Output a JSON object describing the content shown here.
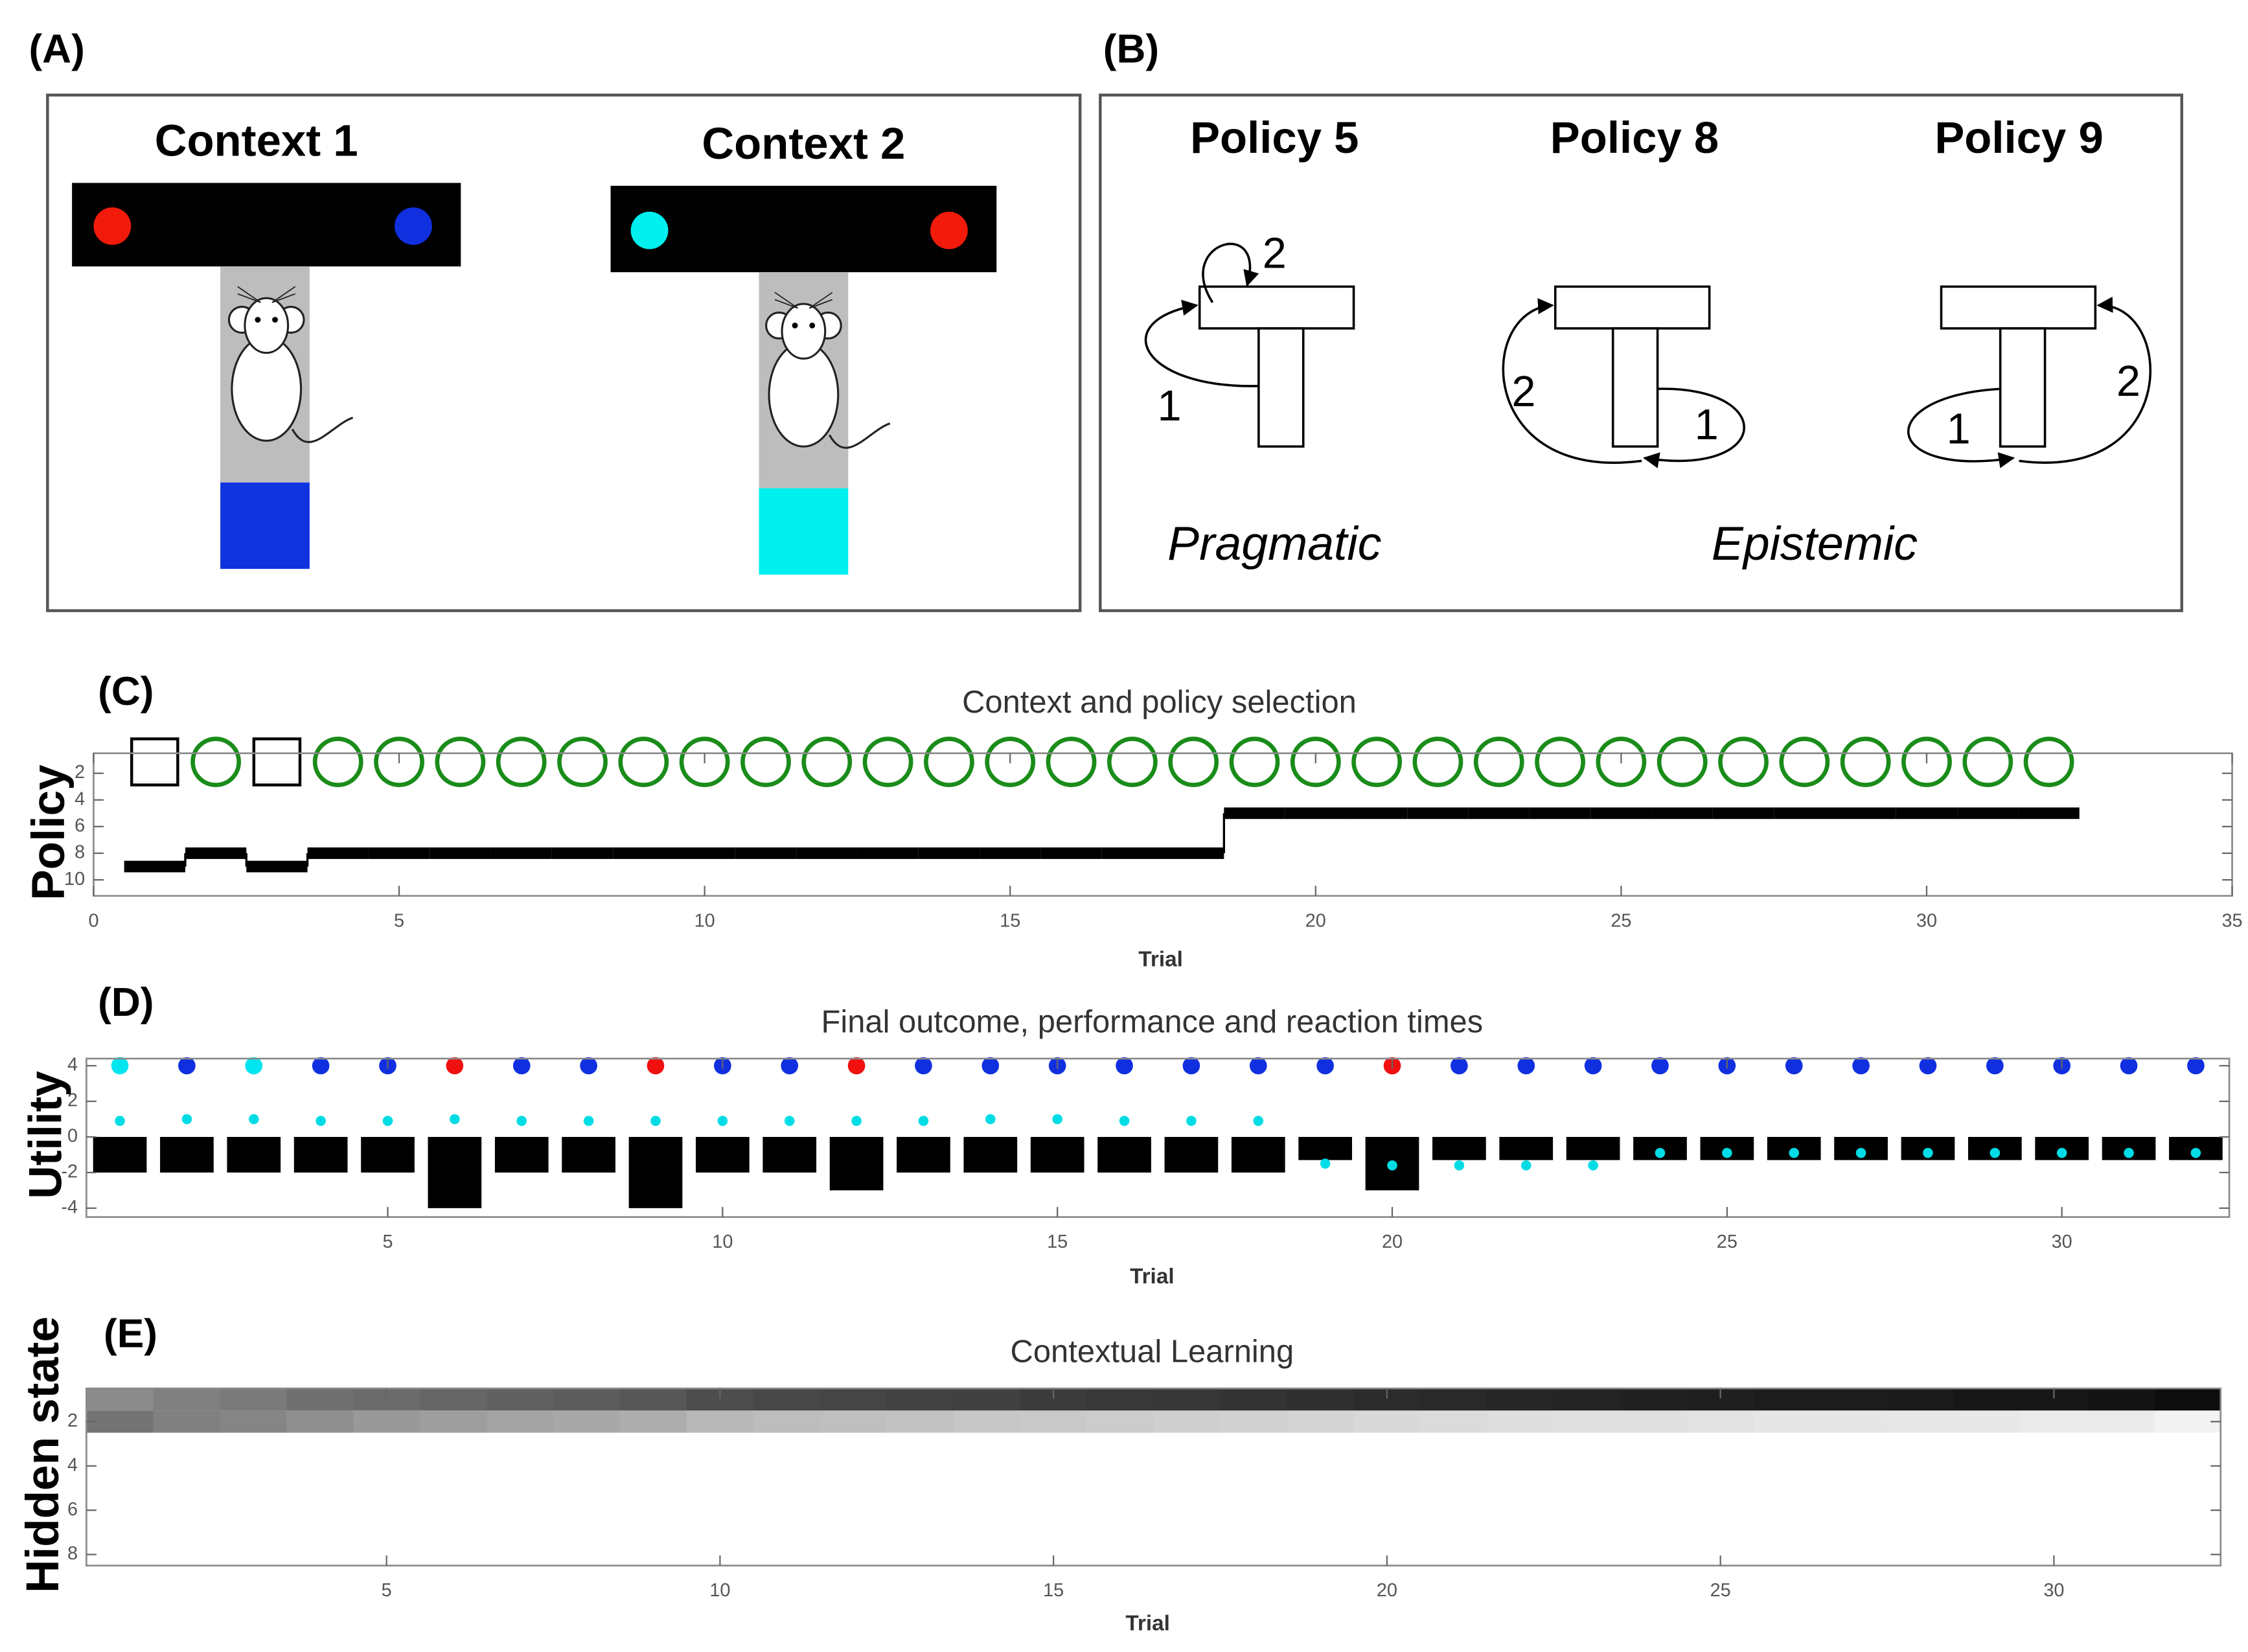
{
  "panels": {
    "a": {
      "label": "(A)",
      "contexts": [
        "Context 1",
        "Context 2"
      ]
    },
    "b": {
      "label": "(B)",
      "policies": [
        {
          "title": "Policy 5",
          "labels": [
            "2",
            "1"
          ]
        },
        {
          "title": "Policy 8",
          "labels": [
            "2",
            "1"
          ]
        },
        {
          "title": "Policy 9",
          "labels": [
            "1",
            "2"
          ]
        }
      ],
      "kinds": [
        "Pragmatic",
        "Epistemic"
      ]
    }
  },
  "chart_data": [
    {
      "type": "step",
      "panel_label": "(C)",
      "title": "Context and policy selection",
      "xlabel": "Trial",
      "ylabel": "Policy",
      "x": [
        1,
        2,
        3,
        4,
        5,
        6,
        7,
        8,
        9,
        10,
        11,
        12,
        13,
        14,
        15,
        16,
        17,
        18,
        19,
        20,
        21,
        22,
        23,
        24,
        25,
        26,
        27,
        28,
        29,
        30,
        31,
        32
      ],
      "values": [
        9,
        8,
        9,
        8,
        8,
        8,
        8,
        8,
        8,
        8,
        8,
        8,
        8,
        8,
        8,
        8,
        8,
        8,
        5,
        5,
        5,
        5,
        5,
        5,
        5,
        5,
        5,
        5,
        5,
        5,
        5,
        5
      ],
      "color": "#000000",
      "markers": [
        "square",
        "circle",
        "square",
        "circle",
        "circle",
        "circle",
        "circle",
        "circle",
        "circle",
        "circle",
        "circle",
        "circle",
        "circle",
        "circle",
        "circle",
        "circle",
        "circle",
        "circle",
        "circle",
        "circle",
        "circle",
        "circle",
        "circle",
        "circle",
        "circle",
        "circle",
        "circle",
        "circle",
        "circle",
        "circle",
        "circle",
        "circle"
      ],
      "marker_colors": {
        "square": "#000000",
        "circle": "#1a8c1a"
      },
      "xlim": [
        0,
        35
      ],
      "xticks": [
        0,
        5,
        10,
        15,
        20,
        25,
        30,
        35
      ],
      "ylim": [
        0.5,
        11.2
      ],
      "yticks": [
        2,
        4,
        6,
        8,
        10
      ],
      "y_reversed": true
    },
    {
      "type": "bar",
      "panel_label": "(D)",
      "title": "Final outcome, performance and reaction times",
      "xlabel": "Trial",
      "ylabel": "Utility",
      "x": [
        1,
        2,
        3,
        4,
        5,
        6,
        7,
        8,
        9,
        10,
        11,
        12,
        13,
        14,
        15,
        16,
        17,
        18,
        19,
        20,
        21,
        22,
        23,
        24,
        25,
        26,
        27,
        28,
        29,
        30,
        31,
        32
      ],
      "series": [
        {
          "style": "bars",
          "color": "#000000",
          "values": [
            -2,
            -2,
            -2,
            -2,
            -2,
            -4,
            -2,
            -2,
            -4,
            -2,
            -2,
            -3,
            -2,
            -2,
            -2,
            -2,
            -2,
            -2,
            -1.3,
            -3,
            -1.3,
            -1.3,
            -1.3,
            -1.3,
            -1.3,
            -1.3,
            -1.3,
            -1.3,
            -1.3,
            -1.3,
            -1.3,
            -1.3
          ]
        },
        {
          "style": "points",
          "color": "#00dce6",
          "values": [
            0.9,
            1.0,
            1.0,
            0.9,
            0.9,
            1.0,
            0.9,
            0.9,
            0.9,
            0.9,
            0.9,
            0.9,
            0.9,
            1.0,
            1.0,
            0.9,
            0.9,
            0.9,
            -1.5,
            -1.6,
            -1.6,
            -1.6,
            -1.6,
            -0.9,
            -0.9,
            -0.9,
            -0.9,
            -0.9,
            -0.9,
            -0.9,
            -0.9,
            -0.9
          ]
        },
        {
          "style": "points",
          "values": [
            4,
            4,
            4,
            4,
            4,
            4,
            4,
            4,
            4,
            4,
            4,
            4,
            4,
            4,
            4,
            4,
            4,
            4,
            4,
            4,
            4,
            4,
            4,
            4,
            4,
            4,
            4,
            4,
            4,
            4,
            4,
            4
          ],
          "colors": [
            "#00e5f0",
            "#1030e0",
            "#00e5f0",
            "#1030e0",
            "#1030e0",
            "#f01010",
            "#1030e0",
            "#1030e0",
            "#f01010",
            "#1030e0",
            "#1030e0",
            "#f01010",
            "#1030e0",
            "#1030e0",
            "#1030e0",
            "#1030e0",
            "#1030e0",
            "#1030e0",
            "#1030e0",
            "#f01010",
            "#1030e0",
            "#1030e0",
            "#1030e0",
            "#1030e0",
            "#1030e0",
            "#1030e0",
            "#1030e0",
            "#1030e0",
            "#1030e0",
            "#1030e0",
            "#1030e0",
            "#1030e0"
          ]
        }
      ],
      "xlim": [
        0.5,
        32.5
      ],
      "xticks": [
        5,
        10,
        15,
        20,
        25,
        30
      ],
      "ylim": [
        -4.5,
        4.4
      ],
      "yticks": [
        -4,
        -2,
        0,
        2,
        4
      ]
    },
    {
      "type": "heatmap",
      "panel_label": "(E)",
      "title": "Contextual Learning",
      "xlabel": "Trial",
      "ylabel": "Hidden state",
      "x": [
        1,
        2,
        3,
        4,
        5,
        6,
        7,
        8,
        9,
        10,
        11,
        12,
        13,
        14,
        15,
        16,
        17,
        18,
        19,
        20,
        21,
        22,
        23,
        24,
        25,
        26,
        27,
        28,
        29,
        30,
        31,
        32
      ],
      "rows": [
        1,
        2
      ],
      "values": [
        [
          0.55,
          0.5,
          0.48,
          0.44,
          0.42,
          0.4,
          0.38,
          0.36,
          0.34,
          0.3,
          0.28,
          0.27,
          0.26,
          0.25,
          0.23,
          0.22,
          0.21,
          0.2,
          0.19,
          0.17,
          0.16,
          0.15,
          0.14,
          0.13,
          0.12,
          0.11,
          0.11,
          0.1,
          0.09,
          0.09,
          0.08,
          0.05
        ],
        [
          0.45,
          0.5,
          0.52,
          0.56,
          0.6,
          0.62,
          0.64,
          0.66,
          0.68,
          0.72,
          0.74,
          0.75,
          0.76,
          0.78,
          0.79,
          0.8,
          0.81,
          0.82,
          0.83,
          0.85,
          0.86,
          0.87,
          0.88,
          0.88,
          0.89,
          0.9,
          0.9,
          0.91,
          0.91,
          0.92,
          0.92,
          0.95
        ]
      ],
      "colormap": "gray",
      "xlim": [
        0.5,
        32.5
      ],
      "xticks": [
        5,
        10,
        15,
        20,
        25,
        30
      ],
      "ylim": [
        0.5,
        8.5
      ],
      "yticks": [
        2,
        4,
        6,
        8
      ],
      "y_reversed": true
    }
  ]
}
